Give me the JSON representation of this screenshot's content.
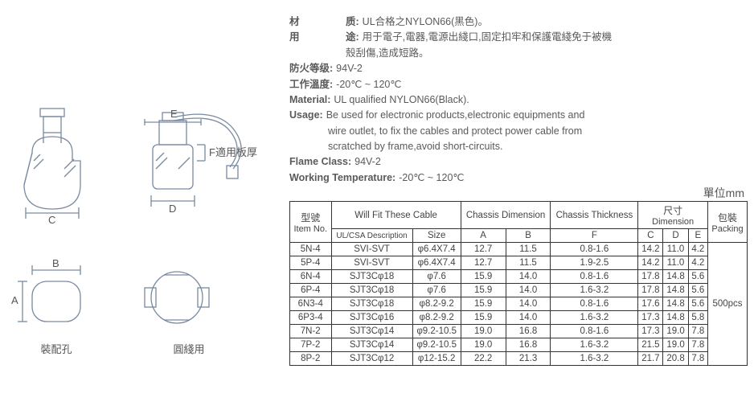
{
  "specs": {
    "material_cn_label": "材",
    "material_cn_label2": "质:",
    "material_cn": "UL合格之NYLON66(黑色)。",
    "usage_cn_label": "用",
    "usage_cn_label2": "途:",
    "usage_cn_1": "用于電子,電器,電源出綫口,固定扣牢和保護電綫免于被機",
    "usage_cn_2": "殼刮傷,造成短路。",
    "flame_cn_label": "防火等级:",
    "flame_cn": "94V-2",
    "temp_cn_label": "工作溫度:",
    "temp_cn": "-20℃ ~ 120℃",
    "material_en_label": "Material:",
    "material_en": "UL qualified NYLON66(Black).",
    "usage_en_label": "Usage:",
    "usage_en_1": "Be used for electronic products,electronic equipments and",
    "usage_en_2": "wire outlet, to fix the cables and protect power cable from",
    "usage_en_3": "scratched by frame,avoid short-circuits.",
    "flame_en_label": "Flame Class:",
    "flame_en": "94V-2",
    "temp_en_label": "Working Temperature:",
    "temp_en": "-20℃ ~ 120℃"
  },
  "unit": "單位mm",
  "diagram_labels": {
    "mount": "裝配孔",
    "round": "圓綫用",
    "E": "E",
    "F": "F適用板厚",
    "D": "D",
    "C": "C",
    "B": "B",
    "A": "A"
  },
  "table": {
    "headers": {
      "item_cn": "型號",
      "item_en": "Item No.",
      "fit_cable": "Will Fit These Cable",
      "ulcsa": "UL/CSA Description",
      "size": "Size",
      "chassis_dim": "Chassis Dimension",
      "A": "A",
      "B": "B",
      "chassis_th": "Chassis Thickness",
      "F": "F",
      "dim_cn": "尺寸",
      "dim_en": "Dimension",
      "C": "C",
      "D": "D",
      "E": "E",
      "pack_cn": "包裝",
      "pack_en": "Packing"
    },
    "rows": [
      {
        "item": "5N-4",
        "ul": "SVI-SVT",
        "size": "φ6.4X7.4",
        "A": "12.7",
        "B": "11.5",
        "F": "0.8-1.6",
        "C": "14.2",
        "D": "11.0",
        "E": "4.2"
      },
      {
        "item": "5P-4",
        "ul": "SVI-SVT",
        "size": "φ6.4X7.4",
        "A": "12.7",
        "B": "11.5",
        "F": "1.9-2.5",
        "C": "14.2",
        "D": "11.0",
        "E": "4.2"
      },
      {
        "item": "6N-4",
        "ul": "SJT3Cφ18",
        "size": "φ7.6",
        "A": "15.9",
        "B": "14.0",
        "F": "0.8-1.6",
        "C": "17.8",
        "D": "14.8",
        "E": "5.6"
      },
      {
        "item": "6P-4",
        "ul": "SJT3Cφ18",
        "size": "φ7.6",
        "A": "15.9",
        "B": "14.0",
        "F": "1.6-3.2",
        "C": "17.8",
        "D": "14.8",
        "E": "5.6"
      },
      {
        "item": "6N3-4",
        "ul": "SJT3Cφ18",
        "size": "φ8.2-9.2",
        "A": "15.9",
        "B": "14.0",
        "F": "0.8-1.6",
        "C": "17.6",
        "D": "14.8",
        "E": "5.6"
      },
      {
        "item": "6P3-4",
        "ul": "SJT3Cφ16",
        "size": "φ8.2-9.2",
        "A": "15.9",
        "B": "14.0",
        "F": "1.6-3.2",
        "C": "17.3",
        "D": "14.8",
        "E": "5.8"
      },
      {
        "item": "7N-2",
        "ul": "SJT3Cφ14",
        "size": "φ9.2-10.5",
        "A": "19.0",
        "B": "16.8",
        "F": "0.8-1.6",
        "C": "17.3",
        "D": "19.0",
        "E": "7.8"
      },
      {
        "item": "7P-2",
        "ul": "SJT3Cφ14",
        "size": "φ9.2-10.5",
        "A": "19.0",
        "B": "16.8",
        "F": "1.6-3.2",
        "C": "21.5",
        "D": "19.0",
        "E": "7.8"
      },
      {
        "item": "8P-2",
        "ul": "SJT3Cφ12",
        "size": "φ12-15.2",
        "A": "22.2",
        "B": "21.3",
        "F": "1.6-3.2",
        "C": "21.7",
        "D": "20.8",
        "E": "7.8"
      }
    ],
    "packing": "500pcs"
  },
  "colors": {
    "line": "#7a8aa0",
    "text": "#5a5a5a",
    "border": "#333"
  }
}
